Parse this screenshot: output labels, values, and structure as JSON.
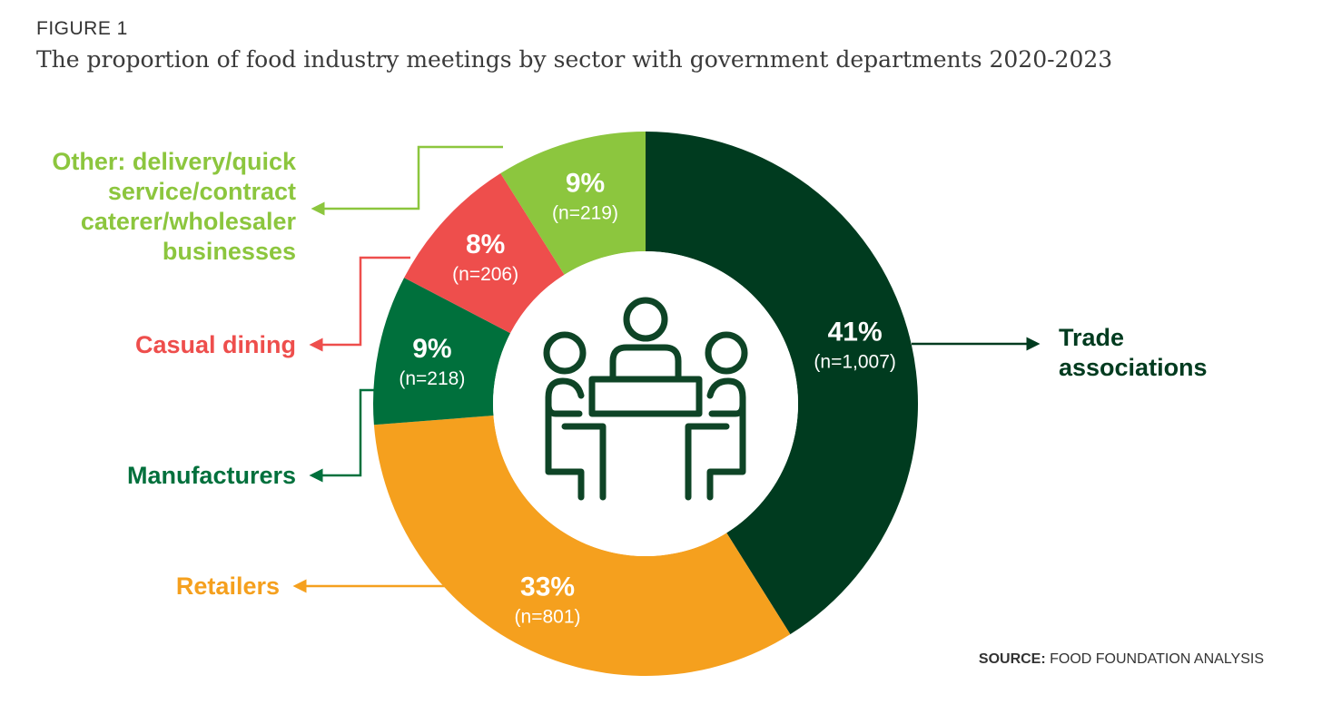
{
  "figure_label": "FIGURE 1",
  "title": "The proportion of food industry meetings by sector with government departments 2020-2023",
  "source": {
    "prefix": "SOURCE:",
    "text": " FOOD FOUNDATION ANALYSIS"
  },
  "icon": "meeting-people-table-icon",
  "chart_data": {
    "type": "pie",
    "donut": true,
    "slices": [
      {
        "label_lines": [
          "Trade",
          "associations"
        ],
        "percent": 41,
        "pct_text": "41%",
        "count": 1007,
        "n_text": "(n=1,007)",
        "color": "#003b1f"
      },
      {
        "label_lines": [
          "Retailers"
        ],
        "percent": 33,
        "pct_text": "33%",
        "count": 801,
        "n_text": "(n=801)",
        "color": "#f5a01e"
      },
      {
        "label_lines": [
          "Manufacturers"
        ],
        "percent": 9,
        "pct_text": "9%",
        "count": 218,
        "n_text": "(n=218)",
        "color": "#00703c"
      },
      {
        "label_lines": [
          "Casual dining"
        ],
        "percent": 8,
        "pct_text": "8%",
        "count": 206,
        "n_text": "(n=206)",
        "color": "#ee4e4c"
      },
      {
        "label_lines": [
          "Other: delivery/quick",
          "service/contract",
          "caterer/wholesaler",
          "businesses"
        ],
        "percent": 9,
        "pct_text": "9%",
        "count": 219,
        "n_text": "(n=219)",
        "color": "#8cc63e"
      }
    ]
  }
}
